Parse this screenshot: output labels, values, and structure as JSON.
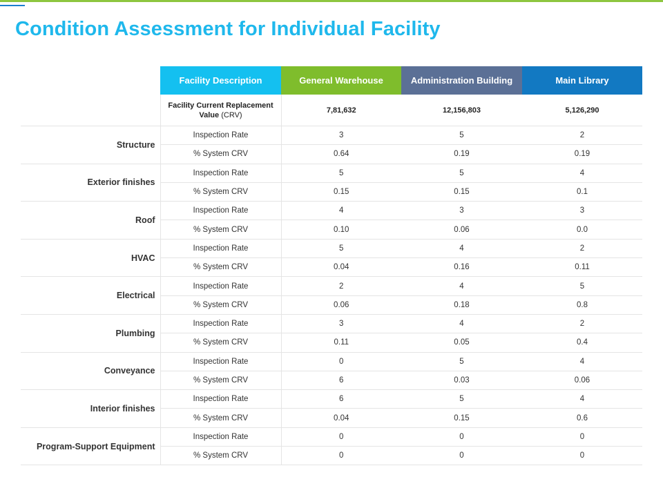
{
  "title": "Condition Assessment for Individual Facility",
  "colors": {
    "accent_title": "#1fb8ec",
    "desc": "#14c0f0",
    "general_warehouse": "#7fbd2c",
    "administration_building": "#5b7096",
    "main_library": "#1279c2",
    "top_line": "#8dc63f"
  },
  "header": {
    "facility_description": "Facility Description",
    "facilities": [
      "General Warehouse",
      "Administration Building",
      "Main Library"
    ]
  },
  "crv_row": {
    "label_bold": "Facility  Current Replacement Value",
    "label_suffix": " (CRV)",
    "values": [
      "7,81,632",
      "12,156,803",
      "5,126,290"
    ]
  },
  "metrics": {
    "inspection": "Inspection Rate",
    "crv": "% System CRV"
  },
  "categories": [
    {
      "name": "Structure",
      "inspection": [
        "3",
        "5",
        "2"
      ],
      "crv": [
        "0.64",
        "0.19",
        "0.19"
      ]
    },
    {
      "name": "Exterior finishes",
      "inspection": [
        "5",
        "5",
        "4"
      ],
      "crv": [
        "0.15",
        "0.15",
        "0.1"
      ]
    },
    {
      "name": "Roof",
      "inspection": [
        "4",
        "3",
        "3"
      ],
      "crv": [
        "0.10",
        "0.06",
        "0.0"
      ]
    },
    {
      "name": "HVAC",
      "inspection": [
        "5",
        "4",
        "2"
      ],
      "crv": [
        "0.04",
        "0.16",
        "0.11"
      ]
    },
    {
      "name": "Electrical",
      "inspection": [
        "2",
        "4",
        "5"
      ],
      "crv": [
        "0.06",
        "0.18",
        "0.8"
      ]
    },
    {
      "name": "Plumbing",
      "inspection": [
        "3",
        "4",
        "2"
      ],
      "crv": [
        "0.11",
        "0.05",
        "0.4"
      ]
    },
    {
      "name": "Conveyance",
      "inspection": [
        "0",
        "5",
        "4"
      ],
      "crv": [
        "6",
        "0.03",
        "0.06"
      ]
    },
    {
      "name": "Interior finishes",
      "inspection": [
        "6",
        "5",
        "4"
      ],
      "crv": [
        "0.04",
        "0.15",
        "0.6"
      ]
    },
    {
      "name": "Program-Support Equipment",
      "inspection": [
        "0",
        "0",
        "0"
      ],
      "crv": [
        "0",
        "0",
        "0"
      ]
    }
  ]
}
